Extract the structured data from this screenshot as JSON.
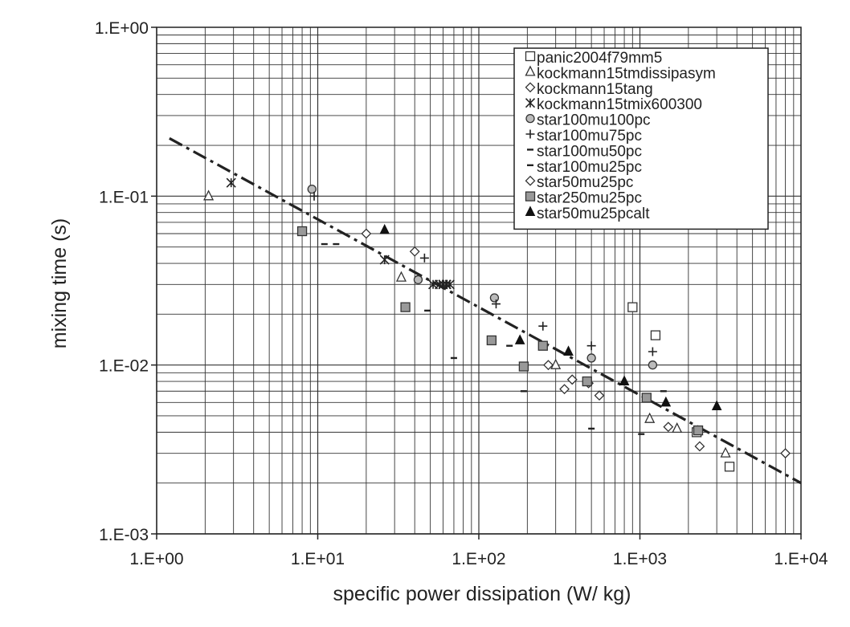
{
  "chart_data": {
    "type": "scatter",
    "xlabel": "specific power dissipation (W/ kg)",
    "ylabel": "mixing time (s)",
    "x_scale": "log",
    "y_scale": "log",
    "xlim": [
      1,
      10000
    ],
    "ylim": [
      0.001,
      1
    ],
    "x_tick_labels": [
      "1.E+00",
      "1.E+01",
      "1.E+02",
      "1.E+03",
      "1.E+04"
    ],
    "y_tick_labels": [
      "1.E+00",
      "1.E-01",
      "1.E-02",
      "1.E-03"
    ],
    "grid": true,
    "legend_position": "top-right",
    "trendline": {
      "style": "dash-dot",
      "color": "#222222",
      "points": [
        [
          1.2,
          0.22
        ],
        [
          10000,
          0.002
        ]
      ]
    },
    "series": [
      {
        "name": "panic2004f79mm5",
        "marker": "square-open",
        "points": [
          [
            900,
            0.022
          ],
          [
            1250,
            0.015
          ],
          [
            2250,
            0.004
          ],
          [
            3600,
            0.0025
          ]
        ]
      },
      {
        "name": "kockmann15tmdissipasym",
        "marker": "triangle-open",
        "points": [
          [
            2.1,
            0.1
          ],
          [
            33,
            0.033
          ],
          [
            300,
            0.01
          ],
          [
            1150,
            0.0048
          ],
          [
            1700,
            0.0042
          ],
          [
            3400,
            0.003
          ]
        ]
      },
      {
        "name": "kockmann15tang",
        "marker": "diamond-open",
        "points": [
          [
            20,
            0.06
          ],
          [
            40,
            0.047
          ],
          [
            270,
            0.01
          ],
          [
            340,
            0.0072
          ],
          [
            380,
            0.0082
          ],
          [
            560,
            0.0066
          ],
          [
            1500,
            0.0043
          ],
          [
            2350,
            0.0033
          ],
          [
            8000,
            0.003
          ]
        ]
      },
      {
        "name": "kockmann15tmix600300",
        "marker": "asterisk",
        "points": [
          [
            2.9,
            0.12
          ],
          [
            26,
            0.042
          ],
          [
            52,
            0.03
          ],
          [
            57,
            0.03
          ],
          [
            60,
            0.03
          ],
          [
            63,
            0.03
          ],
          [
            66,
            0.03
          ]
        ]
      },
      {
        "name": "star100mu100pc",
        "marker": "circle-open",
        "points": [
          [
            9.2,
            0.11
          ],
          [
            42,
            0.032
          ],
          [
            125,
            0.025
          ],
          [
            500,
            0.011
          ],
          [
            1200,
            0.01
          ]
        ]
      },
      {
        "name": "star100mu75pc",
        "marker": "plus",
        "points": [
          [
            9.5,
            0.1
          ],
          [
            46,
            0.043
          ],
          [
            128,
            0.023
          ],
          [
            250,
            0.017
          ],
          [
            500,
            0.013
          ],
          [
            1200,
            0.012
          ]
        ]
      },
      {
        "name": "star100mu50pc",
        "marker": "dash",
        "points": [
          [
            11,
            0.052
          ],
          [
            13,
            0.052
          ],
          [
            48,
            0.021
          ],
          [
            155,
            0.013
          ],
          [
            190,
            0.007
          ],
          [
            500,
            0.0042
          ],
          [
            1400,
            0.007
          ]
        ]
      },
      {
        "name": "star100mu25pc",
        "marker": "dash",
        "points": [
          [
            70,
            0.011
          ],
          [
            1020,
            0.0039
          ]
        ]
      },
      {
        "name": "star50mu25pc",
        "marker": "diamond-open",
        "points": [
          [
            380,
            0.0082
          ],
          [
            480,
            0.0078
          ]
        ]
      },
      {
        "name": "star250mu25pc",
        "marker": "square-filled",
        "points": [
          [
            8,
            0.062
          ],
          [
            35,
            0.022
          ],
          [
            120,
            0.014
          ],
          [
            190,
            0.0098
          ],
          [
            250,
            0.013
          ],
          [
            470,
            0.008
          ],
          [
            1100,
            0.0064
          ],
          [
            2300,
            0.0041
          ]
        ]
      },
      {
        "name": "star50mu25pcalt",
        "marker": "triangle-filled",
        "points": [
          [
            26,
            0.063
          ],
          [
            180,
            0.014
          ],
          [
            360,
            0.012
          ],
          [
            800,
            0.008
          ],
          [
            1450,
            0.006
          ],
          [
            3000,
            0.0057
          ]
        ]
      }
    ]
  }
}
